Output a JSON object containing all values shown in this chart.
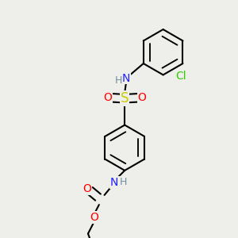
{
  "bg_color": "#eeeeea",
  "atom_colors": {
    "C": "#000000",
    "H": "#7090a0",
    "N": "#2020ff",
    "O": "#ff0000",
    "S": "#cccc00",
    "Cl": "#33cc00"
  },
  "bond_color": "#000000",
  "bond_width": 1.5,
  "dbo": 0.012,
  "fs": 10,
  "fss": 9,
  "ring_r": 0.085
}
